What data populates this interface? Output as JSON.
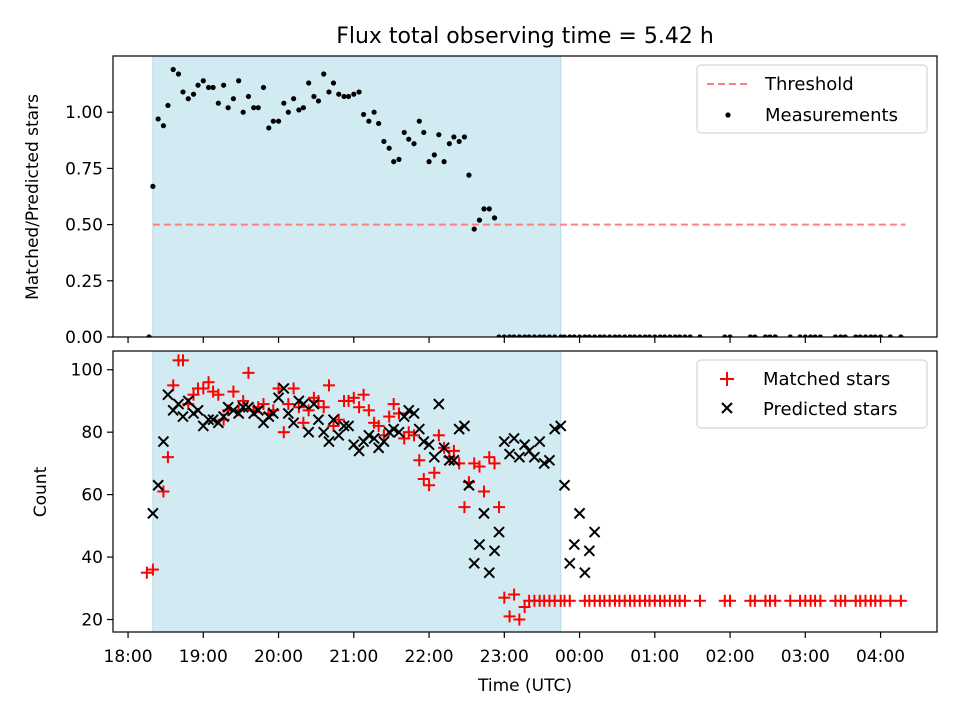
{
  "title": "Flux total observing time = 5.42 h",
  "colors": {
    "shade": "#add8e6",
    "threshold": "#ff7f7f",
    "measurement": "#000000",
    "matched": "#ff0000",
    "predicted": "#000000"
  },
  "chart_data": [
    {
      "type": "scatter",
      "panel": "top",
      "ylabel": "Matched/Predicted stars",
      "xlabel": "",
      "ylim": [
        0,
        1.25
      ],
      "xlim": [
        17.8,
        28.75
      ],
      "ytick_labels": [
        "0.00",
        "0.25",
        "0.50",
        "0.75",
        "1.00"
      ],
      "yticks": [
        0,
        0.25,
        0.5,
        0.75,
        1.0
      ],
      "shaded_region": [
        18.33,
        23.75
      ],
      "threshold": {
        "name": "Threshold",
        "value": 0.5,
        "x_range": [
          18.33,
          28.33
        ]
      },
      "legend": {
        "placement": "top-right",
        "entries": [
          "Threshold",
          "Measurements"
        ]
      },
      "series": [
        {
          "name": "Measurements",
          "x": [
            18.28,
            18.33,
            18.4,
            18.47,
            18.53,
            18.6,
            18.67,
            18.73,
            18.8,
            18.87,
            18.93,
            19.0,
            19.07,
            19.13,
            19.2,
            19.27,
            19.33,
            19.4,
            19.47,
            19.53,
            19.6,
            19.67,
            19.73,
            19.8,
            19.87,
            19.93,
            20.0,
            20.07,
            20.13,
            20.2,
            20.27,
            20.33,
            20.4,
            20.47,
            20.53,
            20.6,
            20.67,
            20.73,
            20.8,
            20.87,
            20.93,
            21.0,
            21.07,
            21.13,
            21.2,
            21.27,
            21.33,
            21.4,
            21.47,
            21.53,
            21.6,
            21.67,
            21.73,
            21.8,
            21.87,
            21.93,
            22.0,
            22.07,
            22.13,
            22.2,
            22.27,
            22.33,
            22.4,
            22.47,
            22.53,
            22.6,
            22.67,
            22.73,
            22.8,
            22.87,
            22.93,
            23.0,
            23.07,
            23.13,
            23.2,
            23.27,
            23.33,
            23.4,
            23.47,
            23.53,
            23.6,
            23.67,
            23.75,
            23.8,
            23.87,
            23.93,
            24.0,
            24.07,
            24.13,
            24.2,
            24.27,
            24.33,
            24.4,
            24.47,
            24.53,
            24.6,
            24.67,
            24.73,
            24.8,
            24.87,
            24.93,
            25.0,
            25.07,
            25.13,
            25.2,
            25.27,
            25.33,
            25.4,
            25.47,
            25.6,
            25.93,
            26.0,
            26.27,
            26.33,
            26.47,
            26.53,
            26.6,
            26.6,
            26.8,
            26.93,
            27.0,
            27.07,
            27.13,
            27.2,
            27.4,
            27.47,
            27.53,
            27.67,
            27.73,
            27.8,
            27.87,
            27.93,
            28.0,
            28.13,
            28.27
          ],
          "y": [
            0.0,
            0.67,
            0.97,
            0.94,
            1.03,
            1.19,
            1.17,
            1.09,
            1.06,
            1.08,
            1.12,
            1.14,
            1.11,
            1.11,
            1.04,
            1.12,
            1.02,
            1.06,
            1.14,
            1.0,
            1.07,
            1.02,
            1.02,
            1.11,
            0.93,
            0.96,
            0.96,
            1.04,
            1.0,
            1.06,
            1.01,
            1.02,
            1.13,
            1.07,
            1.05,
            1.17,
            1.09,
            1.13,
            1.08,
            1.07,
            1.07,
            1.08,
            1.09,
            0.99,
            0.96,
            1.0,
            0.95,
            0.87,
            0.84,
            0.78,
            0.79,
            0.91,
            0.88,
            0.86,
            0.96,
            0.91,
            0.78,
            0.81,
            0.9,
            0.78,
            0.86,
            0.89,
            0.87,
            0.89,
            0.72,
            0.48,
            0.52,
            0.57,
            0.57,
            0.53,
            0.0,
            0.0,
            0.0,
            0.0,
            0.0,
            0.0,
            0.0,
            0.0,
            0.0,
            0.0,
            0.0,
            0.0,
            0.0,
            0.0,
            0.0,
            0.0,
            0.0,
            0.0,
            0.0,
            0.0,
            0.0,
            0.0,
            0.0,
            0.0,
            0.0,
            0.0,
            0.0,
            0.0,
            0.0,
            0.0,
            0.0,
            0.0,
            0.0,
            0.0,
            0.0,
            0.0,
            0.0,
            0.0,
            0.0,
            0.0,
            0.0,
            0.0,
            0.0,
            0.0,
            0.0,
            0.0,
            0.0,
            0.0,
            0.0,
            0.0,
            0.0,
            0.0,
            0.0,
            0.0,
            0.0,
            0.0,
            0.0,
            0.0,
            0.0,
            0.0,
            0.0,
            0.0,
            0.0,
            0.0,
            0.0
          ]
        }
      ]
    },
    {
      "type": "scatter",
      "panel": "bottom",
      "ylabel": "Count",
      "xlabel": "Time (UTC)",
      "ylim": [
        16,
        106
      ],
      "xlim": [
        17.8,
        28.75
      ],
      "ytick_labels": [
        "20",
        "40",
        "60",
        "80",
        "100"
      ],
      "yticks": [
        20,
        40,
        60,
        80,
        100
      ],
      "xtick_labels": [
        "18:00",
        "19:00",
        "20:00",
        "21:00",
        "22:00",
        "23:00",
        "00:00",
        "01:00",
        "02:00",
        "03:00",
        "04:00"
      ],
      "xticks": [
        18,
        19,
        20,
        21,
        22,
        23,
        24,
        25,
        26,
        27,
        28
      ],
      "shaded_region": [
        18.33,
        23.75
      ],
      "legend": {
        "placement": "top-right",
        "entries": [
          "Matched stars",
          "Predicted stars"
        ]
      },
      "series": [
        {
          "name": "Matched stars",
          "x": [
            18.25,
            18.33,
            18.47,
            18.53,
            18.6,
            18.67,
            18.73,
            18.8,
            18.87,
            18.93,
            19.0,
            19.07,
            19.13,
            19.2,
            19.27,
            19.33,
            19.4,
            19.47,
            19.53,
            19.6,
            19.67,
            19.73,
            19.8,
            19.87,
            19.93,
            20.0,
            20.07,
            20.13,
            20.2,
            20.27,
            20.33,
            20.4,
            20.47,
            20.53,
            20.6,
            20.67,
            20.73,
            20.8,
            20.87,
            20.93,
            21.0,
            21.07,
            21.13,
            21.2,
            21.27,
            21.33,
            21.4,
            21.47,
            21.53,
            21.6,
            21.67,
            21.73,
            21.8,
            21.87,
            21.93,
            22.0,
            22.07,
            22.13,
            22.2,
            22.27,
            22.33,
            22.4,
            22.47,
            22.53,
            22.6,
            22.67,
            22.73,
            22.8,
            22.87,
            22.93,
            23.0,
            23.07,
            23.13,
            23.2,
            23.27,
            23.33,
            23.4,
            23.47,
            23.53,
            23.6,
            23.67,
            23.75,
            23.8,
            23.87,
            24.07,
            24.13,
            24.2,
            24.27,
            24.33,
            24.4,
            24.47,
            24.53,
            24.6,
            24.67,
            24.73,
            24.8,
            24.87,
            24.93,
            25.0,
            25.07,
            25.13,
            25.2,
            25.27,
            25.33,
            25.4,
            25.6,
            25.93,
            26.0,
            26.27,
            26.33,
            26.47,
            26.53,
            26.6,
            26.8,
            26.93,
            27.0,
            27.07,
            27.13,
            27.2,
            27.4,
            27.47,
            27.53,
            27.67,
            27.73,
            27.8,
            27.87,
            27.93,
            28.0,
            28.13,
            28.27
          ],
          "y": [
            35,
            36,
            61,
            72,
            95,
            103,
            103,
            89,
            92,
            94,
            94,
            96,
            93,
            92,
            84,
            87,
            93,
            87,
            90,
            99,
            87,
            88,
            89,
            86,
            87,
            94,
            80,
            89,
            94,
            88,
            83,
            87,
            91,
            90,
            88,
            95,
            82,
            84,
            90,
            90,
            91,
            88,
            92,
            87,
            83,
            82,
            79,
            85,
            89,
            86,
            78,
            80,
            79,
            71,
            65,
            63,
            67,
            79,
            75,
            72,
            74,
            70,
            56,
            64,
            70,
            69,
            61,
            72,
            70,
            56,
            27,
            21,
            28,
            20,
            24,
            26,
            26,
            26,
            26,
            26,
            26,
            26,
            26,
            26,
            26,
            26,
            26,
            26,
            26,
            26,
            26,
            26,
            26,
            26,
            26,
            26,
            26,
            26,
            26,
            26,
            26,
            26,
            26,
            26,
            26,
            26,
            26,
            26,
            26,
            26,
            26,
            26,
            26,
            26,
            26,
            26,
            26,
            26,
            26,
            26,
            26,
            26,
            26,
            26,
            26,
            26,
            26,
            26,
            26,
            26
          ]
        },
        {
          "name": "Predicted stars",
          "x": [
            18.33,
            18.4,
            18.47,
            18.53,
            18.6,
            18.67,
            18.73,
            18.8,
            18.87,
            18.93,
            19.0,
            19.07,
            19.13,
            19.2,
            19.27,
            19.33,
            19.4,
            19.47,
            19.53,
            19.6,
            19.67,
            19.73,
            19.8,
            19.87,
            19.93,
            20.0,
            20.07,
            20.13,
            20.2,
            20.27,
            20.33,
            20.4,
            20.47,
            20.53,
            20.6,
            20.67,
            20.73,
            20.8,
            20.87,
            20.93,
            21.0,
            21.07,
            21.13,
            21.2,
            21.27,
            21.33,
            21.4,
            21.47,
            21.53,
            21.6,
            21.67,
            21.73,
            21.8,
            21.87,
            21.93,
            22.0,
            22.07,
            22.13,
            22.2,
            22.27,
            22.33,
            22.4,
            22.47,
            22.53,
            22.6,
            22.67,
            22.73,
            22.8,
            22.87,
            22.93,
            23.0,
            23.07,
            23.13,
            23.2,
            23.27,
            23.33,
            23.4,
            23.47,
            23.53,
            23.6,
            23.67,
            23.75,
            23.8,
            23.87,
            23.93,
            24.0,
            24.07,
            24.13,
            24.2
          ],
          "y": [
            54,
            63,
            77,
            92,
            87,
            89,
            85,
            90,
            86,
            87,
            82,
            84,
            84,
            83,
            85,
            88,
            87,
            86,
            88,
            88,
            86,
            87,
            83,
            85,
            86,
            91,
            94,
            86,
            83,
            90,
            89,
            80,
            89,
            84,
            80,
            77,
            84,
            79,
            82,
            82,
            76,
            74,
            77,
            79,
            78,
            75,
            77,
            80,
            81,
            80,
            85,
            87,
            86,
            81,
            77,
            76,
            72,
            89,
            75,
            71,
            71,
            81,
            82,
            63,
            38,
            44,
            54,
            35,
            42,
            48,
            77,
            73,
            78,
            72,
            76,
            74,
            72,
            77,
            70,
            71,
            81,
            82,
            63,
            38,
            44,
            54,
            35,
            42,
            48
          ]
        }
      ]
    }
  ]
}
